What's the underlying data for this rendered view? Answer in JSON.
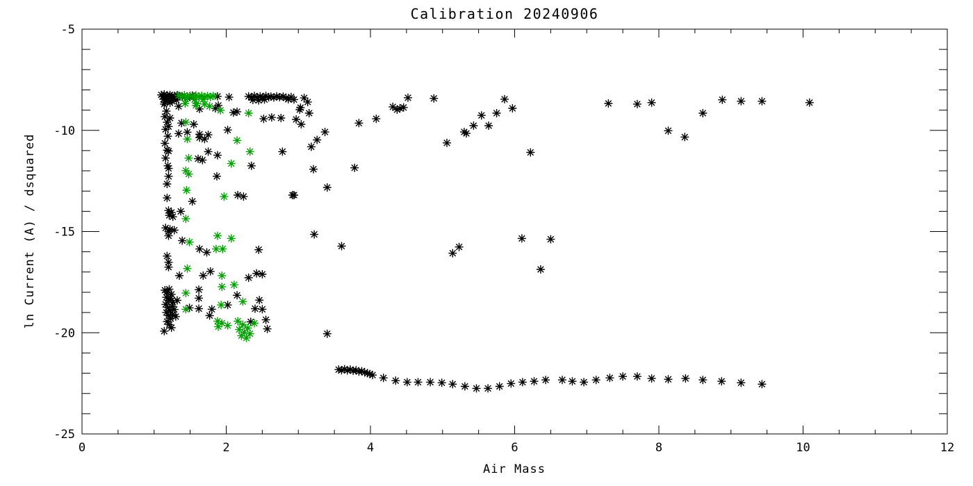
{
  "chart_data": {
    "type": "scatter",
    "title": "Calibration 20240906",
    "xlabel": "Air Mass",
    "ylabel": "ln Current (A) / dsquared",
    "xlim": [
      0,
      12
    ],
    "ylim": [
      -25,
      -5
    ],
    "x_major_ticks": [
      0,
      2,
      4,
      6,
      8,
      10,
      12
    ],
    "x_tick_labels": [
      "0",
      "2",
      "4",
      "6",
      "8",
      "10",
      "12"
    ],
    "x_minor_step": 0.5,
    "y_major_ticks": [
      -25,
      -20,
      -15,
      -10,
      -5
    ],
    "y_tick_labels": [
      "-25",
      "-20",
      "-15",
      "-10",
      "-5"
    ],
    "y_minor_step": 1,
    "grid": false,
    "legend": "none",
    "marker": "asterisk",
    "series": [
      {
        "name": "black-series",
        "color": "#000000",
        "points": [
          [
            1.1,
            -8.25
          ],
          [
            1.12,
            -8.32
          ],
          [
            1.14,
            -8.22
          ],
          [
            1.16,
            -8.36
          ],
          [
            1.18,
            -8.27
          ],
          [
            1.2,
            -8.4
          ],
          [
            1.22,
            -8.25
          ],
          [
            1.24,
            -8.33
          ],
          [
            1.26,
            -8.45
          ],
          [
            1.28,
            -8.3
          ],
          [
            1.3,
            -8.38
          ],
          [
            1.32,
            -8.26
          ],
          [
            1.13,
            -8.46
          ],
          [
            1.19,
            -8.52
          ],
          [
            1.25,
            -8.56
          ],
          [
            1.31,
            -8.5
          ],
          [
            1.15,
            -8.62
          ],
          [
            1.22,
            -8.64
          ],
          [
            1.39,
            -8.32
          ],
          [
            1.46,
            -8.4
          ],
          [
            1.53,
            -8.28
          ],
          [
            1.88,
            -8.32
          ],
          [
            2.04,
            -8.36
          ],
          [
            2.31,
            -8.32
          ],
          [
            2.35,
            -8.37
          ],
          [
            2.39,
            -8.3
          ],
          [
            2.43,
            -8.38
          ],
          [
            2.47,
            -8.32
          ],
          [
            2.51,
            -8.36
          ],
          [
            2.55,
            -8.3
          ],
          [
            2.59,
            -8.37
          ],
          [
            2.37,
            -8.5
          ],
          [
            2.45,
            -8.52
          ],
          [
            2.53,
            -8.48
          ],
          [
            2.62,
            -8.33
          ],
          [
            2.66,
            -8.38
          ],
          [
            2.7,
            -8.32
          ],
          [
            2.74,
            -8.36
          ],
          [
            2.79,
            -8.33
          ],
          [
            2.83,
            -8.4
          ],
          [
            2.86,
            -8.46
          ],
          [
            3.08,
            -8.4
          ],
          [
            3.13,
            -8.6
          ],
          [
            3.03,
            -8.88
          ],
          [
            3.02,
            -8.98
          ],
          [
            3.15,
            -9.15
          ],
          [
            2.97,
            -9.46
          ],
          [
            3.04,
            -9.7
          ],
          [
            2.9,
            -8.35
          ],
          [
            2.94,
            -8.48
          ],
          [
            3.37,
            -10.08
          ],
          [
            3.26,
            -10.47
          ],
          [
            3.18,
            -10.81
          ],
          [
            3.21,
            -11.92
          ],
          [
            3.78,
            -11.85
          ],
          [
            3.4,
            -12.82
          ],
          [
            2.94,
            -13.2
          ],
          [
            3.84,
            -9.64
          ],
          [
            4.08,
            -9.43
          ],
          [
            4.31,
            -8.84
          ],
          [
            4.37,
            -8.98
          ],
          [
            4.41,
            -8.91
          ],
          [
            4.46,
            -8.87
          ],
          [
            4.52,
            -8.39
          ],
          [
            4.88,
            -8.42
          ],
          [
            5.86,
            -8.46
          ],
          [
            5.97,
            -8.91
          ],
          [
            5.75,
            -9.15
          ],
          [
            5.54,
            -9.26
          ],
          [
            5.64,
            -9.77
          ],
          [
            5.43,
            -9.77
          ],
          [
            5.33,
            -10.15
          ],
          [
            5.06,
            -10.62
          ],
          [
            5.3,
            -10.08
          ],
          [
            6.22,
            -11.09
          ],
          [
            7.3,
            -8.67
          ],
          [
            7.7,
            -8.7
          ],
          [
            7.9,
            -8.63
          ],
          [
            8.61,
            -9.15
          ],
          [
            8.13,
            -10.02
          ],
          [
            8.36,
            -10.33
          ],
          [
            8.88,
            -8.49
          ],
          [
            9.14,
            -8.56
          ],
          [
            9.43,
            -8.56
          ],
          [
            10.09,
            -8.63
          ],
          [
            3.22,
            -15.14
          ],
          [
            3.6,
            -15.72
          ],
          [
            5.14,
            -16.07
          ],
          [
            5.23,
            -15.76
          ],
          [
            3.4,
            -20.05
          ],
          [
            6.1,
            -15.34
          ],
          [
            6.5,
            -15.38
          ],
          [
            6.36,
            -16.87
          ],
          [
            1.14,
            -8.7
          ],
          [
            1.17,
            -9.05
          ],
          [
            1.15,
            -9.32
          ],
          [
            1.18,
            -9.6
          ],
          [
            1.16,
            -9.95
          ],
          [
            1.19,
            -10.29
          ],
          [
            1.15,
            -10.64
          ],
          [
            1.18,
            -10.98
          ],
          [
            1.16,
            -11.37
          ],
          [
            1.19,
            -11.75
          ],
          [
            1.34,
            -8.81
          ],
          [
            1.63,
            -8.94
          ],
          [
            1.85,
            -8.91
          ],
          [
            1.89,
            -8.77
          ],
          [
            2.1,
            -9.12
          ],
          [
            2.15,
            -9.08
          ],
          [
            2.52,
            -9.43
          ],
          [
            2.63,
            -9.36
          ],
          [
            2.76,
            -9.39
          ],
          [
            1.22,
            -9.39
          ],
          [
            1.38,
            -9.64
          ],
          [
            1.55,
            -9.7
          ],
          [
            1.2,
            -9.81
          ],
          [
            1.34,
            -10.16
          ],
          [
            1.46,
            -10.09
          ],
          [
            1.63,
            -10.19
          ],
          [
            1.75,
            -10.22
          ],
          [
            2.02,
            -9.98
          ],
          [
            1.63,
            -10.36
          ],
          [
            1.7,
            -10.43
          ],
          [
            1.2,
            -11.02
          ],
          [
            1.75,
            -11.05
          ],
          [
            1.88,
            -11.23
          ],
          [
            2.78,
            -11.05
          ],
          [
            1.61,
            -11.4
          ],
          [
            1.67,
            -11.47
          ],
          [
            2.35,
            -11.75
          ],
          [
            1.2,
            -11.88
          ],
          [
            1.2,
            -12.27
          ],
          [
            1.87,
            -12.27
          ],
          [
            1.18,
            -12.65
          ],
          [
            1.18,
            -13.34
          ],
          [
            1.53,
            -13.51
          ],
          [
            2.16,
            -13.2
          ],
          [
            2.24,
            -13.27
          ],
          [
            2.92,
            -13.2
          ],
          [
            1.2,
            -13.96
          ],
          [
            1.24,
            -14.06
          ],
          [
            1.21,
            -14.2
          ],
          [
            1.26,
            -14.27
          ],
          [
            1.37,
            -14.0
          ],
          [
            1.16,
            -14.82
          ],
          [
            1.22,
            -14.89
          ],
          [
            1.28,
            -14.93
          ],
          [
            1.2,
            -15.0
          ],
          [
            1.2,
            -15.21
          ],
          [
            1.39,
            -15.45
          ],
          [
            1.63,
            -15.86
          ],
          [
            1.73,
            -16.03
          ],
          [
            2.45,
            -15.9
          ],
          [
            1.18,
            -16.21
          ],
          [
            1.2,
            -16.52
          ],
          [
            1.2,
            -16.76
          ],
          [
            1.35,
            -17.18
          ],
          [
            1.68,
            -17.18
          ],
          [
            1.78,
            -16.97
          ],
          [
            2.31,
            -17.28
          ],
          [
            2.42,
            -17.07
          ],
          [
            2.5,
            -17.11
          ],
          [
            1.62,
            -17.87
          ],
          [
            1.62,
            -18.29
          ],
          [
            2.15,
            -18.15
          ],
          [
            2.46,
            -18.39
          ],
          [
            1.49,
            -18.77
          ],
          [
            1.62,
            -18.81
          ],
          [
            1.8,
            -18.84
          ],
          [
            2.02,
            -18.63
          ],
          [
            2.4,
            -18.81
          ],
          [
            2.5,
            -18.84
          ],
          [
            2.55,
            -19.36
          ],
          [
            2.57,
            -19.81
          ],
          [
            1.77,
            -19.15
          ],
          [
            2.34,
            -19.46
          ],
          [
            1.15,
            -17.9
          ],
          [
            1.18,
            -18.0
          ],
          [
            1.21,
            -17.85
          ],
          [
            1.24,
            -18.1
          ],
          [
            1.17,
            -18.25
          ],
          [
            1.2,
            -18.4
          ],
          [
            1.23,
            -18.3
          ],
          [
            1.26,
            -18.5
          ],
          [
            1.16,
            -18.6
          ],
          [
            1.19,
            -18.75
          ],
          [
            1.22,
            -18.9
          ],
          [
            1.25,
            -18.7
          ],
          [
            1.28,
            -18.85
          ],
          [
            1.17,
            -19.0
          ],
          [
            1.2,
            -19.15
          ],
          [
            1.23,
            -19.3
          ],
          [
            1.26,
            -19.1
          ],
          [
            1.18,
            -19.45
          ],
          [
            1.21,
            -19.6
          ],
          [
            1.24,
            -19.75
          ],
          [
            1.3,
            -19.2
          ],
          [
            1.32,
            -18.4
          ],
          [
            1.14,
            -19.92
          ],
          [
            3.56,
            -21.82
          ],
          [
            3.6,
            -21.85
          ],
          [
            3.64,
            -21.8
          ],
          [
            3.68,
            -21.86
          ],
          [
            3.72,
            -21.82
          ],
          [
            3.76,
            -21.88
          ],
          [
            3.8,
            -21.85
          ],
          [
            3.84,
            -21.92
          ],
          [
            3.88,
            -21.9
          ],
          [
            3.92,
            -21.96
          ],
          [
            3.96,
            -22.0
          ],
          [
            3.99,
            -22.04
          ],
          [
            4.03,
            -22.09
          ],
          [
            4.18,
            -22.23
          ],
          [
            4.35,
            -22.37
          ],
          [
            4.51,
            -22.44
          ],
          [
            4.66,
            -22.44
          ],
          [
            4.83,
            -22.44
          ],
          [
            4.99,
            -22.47
          ],
          [
            5.14,
            -22.54
          ],
          [
            5.31,
            -22.65
          ],
          [
            5.47,
            -22.75
          ],
          [
            5.63,
            -22.75
          ],
          [
            5.79,
            -22.65
          ],
          [
            5.95,
            -22.51
          ],
          [
            6.11,
            -22.44
          ],
          [
            6.27,
            -22.4
          ],
          [
            6.43,
            -22.33
          ],
          [
            6.66,
            -22.33
          ],
          [
            6.8,
            -22.4
          ],
          [
            6.96,
            -22.44
          ],
          [
            7.13,
            -22.33
          ],
          [
            7.32,
            -22.23
          ],
          [
            7.5,
            -22.16
          ],
          [
            7.7,
            -22.16
          ],
          [
            7.9,
            -22.26
          ],
          [
            8.13,
            -22.3
          ],
          [
            8.37,
            -22.26
          ],
          [
            8.61,
            -22.33
          ],
          [
            8.87,
            -22.4
          ],
          [
            9.14,
            -22.47
          ],
          [
            9.43,
            -22.54
          ]
        ]
      },
      {
        "name": "green-series",
        "color": "#00a000",
        "points": [
          [
            1.34,
            -8.28
          ],
          [
            1.38,
            -8.33
          ],
          [
            1.42,
            -8.26
          ],
          [
            1.46,
            -8.34
          ],
          [
            1.5,
            -8.29
          ],
          [
            1.54,
            -8.36
          ],
          [
            1.58,
            -8.27
          ],
          [
            1.62,
            -8.34
          ],
          [
            1.66,
            -8.29
          ],
          [
            1.7,
            -8.36
          ],
          [
            1.74,
            -8.3
          ],
          [
            1.78,
            -8.35
          ],
          [
            1.82,
            -8.3
          ],
          [
            1.44,
            -8.45
          ],
          [
            1.56,
            -8.48
          ],
          [
            1.68,
            -8.46
          ],
          [
            1.43,
            -8.67
          ],
          [
            1.59,
            -8.67
          ],
          [
            1.58,
            -8.77
          ],
          [
            1.7,
            -8.7
          ],
          [
            1.77,
            -8.81
          ],
          [
            1.92,
            -9.01
          ],
          [
            2.31,
            -9.15
          ],
          [
            1.44,
            -9.6
          ],
          [
            1.46,
            -10.43
          ],
          [
            2.15,
            -10.5
          ],
          [
            2.33,
            -11.05
          ],
          [
            1.48,
            -11.37
          ],
          [
            2.07,
            -11.64
          ],
          [
            1.44,
            -11.99
          ],
          [
            1.48,
            -12.16
          ],
          [
            1.45,
            -12.96
          ],
          [
            1.97,
            -13.27
          ],
          [
            1.44,
            -14.37
          ],
          [
            1.49,
            -15.52
          ],
          [
            1.88,
            -15.21
          ],
          [
            2.07,
            -15.34
          ],
          [
            1.86,
            -15.86
          ],
          [
            1.95,
            -15.86
          ],
          [
            1.46,
            -16.83
          ],
          [
            1.94,
            -17.18
          ],
          [
            1.94,
            -17.73
          ],
          [
            2.11,
            -17.63
          ],
          [
            1.44,
            -18.04
          ],
          [
            2.23,
            -18.46
          ],
          [
            1.44,
            -18.84
          ],
          [
            1.93,
            -18.63
          ],
          [
            1.88,
            -19.43
          ],
          [
            1.94,
            -19.53
          ],
          [
            2.02,
            -19.64
          ],
          [
            1.89,
            -19.7
          ],
          [
            2.16,
            -19.43
          ],
          [
            2.23,
            -19.6
          ],
          [
            2.3,
            -19.77
          ],
          [
            2.18,
            -19.84
          ],
          [
            2.25,
            -19.98
          ],
          [
            2.33,
            -20.05
          ],
          [
            2.21,
            -20.15
          ],
          [
            2.28,
            -20.26
          ],
          [
            2.39,
            -19.53
          ]
        ]
      }
    ]
  }
}
